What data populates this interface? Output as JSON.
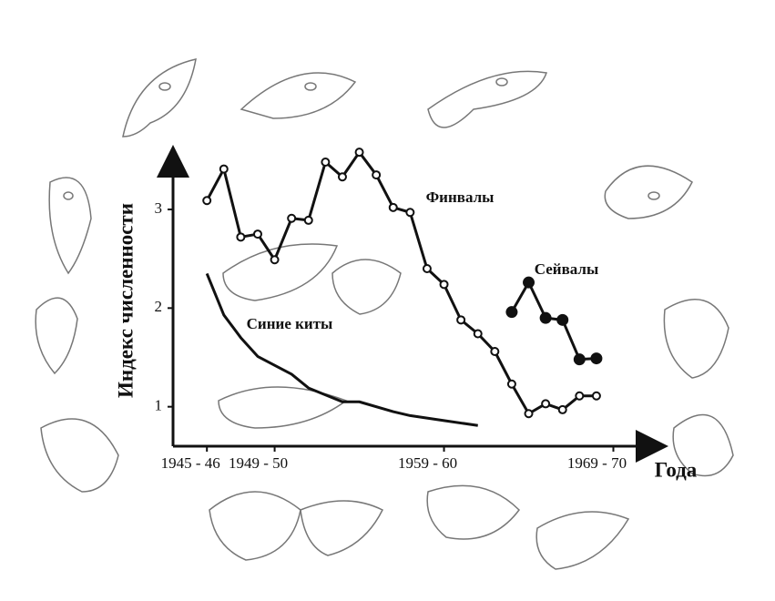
{
  "chart_data": {
    "type": "line",
    "y_label": "Индекс численности",
    "x_label": "Года",
    "xlim": [
      1943,
      1971.5
    ],
    "ylim": [
      0.6,
      3.6
    ],
    "xticks": [
      {
        "value": 1945,
        "label": "1945 - 46"
      },
      {
        "value": 1949,
        "label": "1949 - 50"
      },
      {
        "value": 1959,
        "label": "1959 - 60"
      },
      {
        "value": 1969,
        "label": "1969 - 70"
      }
    ],
    "yticks": [
      1,
      2,
      3
    ],
    "series": [
      {
        "name": "Финвалы",
        "color": "#111111",
        "marker": "open",
        "x": [
          1945,
          1946,
          1947,
          1948,
          1949,
          1950,
          1951,
          1952,
          1953,
          1954,
          1955,
          1956,
          1957,
          1958,
          1959,
          1960,
          1961,
          1962,
          1963,
          1964,
          1965,
          1966,
          1967,
          1968
        ],
        "values": [
          3.09,
          3.41,
          2.72,
          2.75,
          2.49,
          2.91,
          2.89,
          3.48,
          3.33,
          3.58,
          3.35,
          3.02,
          2.97,
          2.4,
          2.24,
          1.88,
          1.74,
          1.56,
          1.23,
          0.93,
          1.03,
          0.97,
          1.11,
          1.11
        ]
      },
      {
        "name": "Сейвалы",
        "color": "#111111",
        "marker": "filled",
        "x": [
          1963,
          1964,
          1965,
          1966,
          1967,
          1968
        ],
        "values": [
          1.96,
          2.26,
          1.9,
          1.88,
          1.48,
          1.49
        ]
      },
      {
        "name": "Синие киты",
        "color": "#111111",
        "marker": "none",
        "x": [
          1945,
          1946,
          1947,
          1948,
          1949,
          1950,
          1951,
          1953,
          1954,
          1956,
          1957,
          1959,
          1961
        ],
        "values": [
          2.35,
          1.93,
          1.7,
          1.51,
          1.42,
          1.33,
          1.19,
          1.05,
          1.05,
          0.95,
          0.91,
          0.86,
          0.81
        ]
      }
    ]
  }
}
